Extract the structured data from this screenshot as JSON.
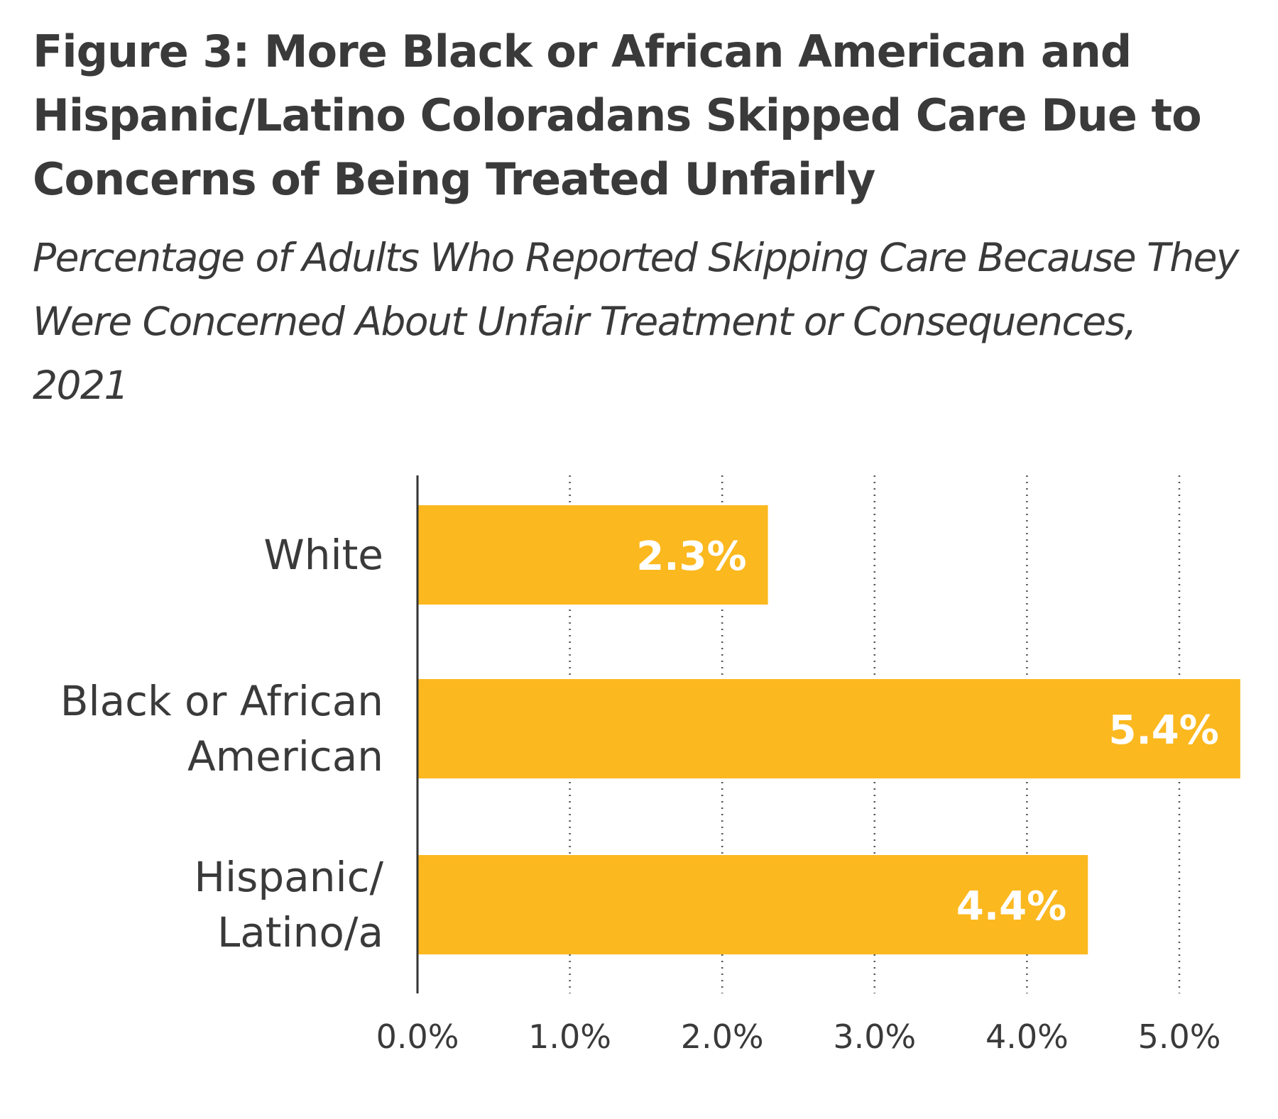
{
  "chart_data": {
    "type": "bar",
    "orientation": "horizontal",
    "title": "Figure 3: More Black or African American and Hispanic/Latino Coloradans Skipped Care Due to Concerns of Being Treated Unfairly",
    "subtitle": "Percentage of Adults Who Reported Skipping Care Because They Were Concerned About Unfair Treatment or Consequences, 2021",
    "categories": [
      [
        "White"
      ],
      [
        "Black or African",
        "American"
      ],
      [
        "Hispanic/",
        "Latino/a"
      ]
    ],
    "values": [
      2.3,
      5.4,
      4.4
    ],
    "value_labels": [
      "2.3%",
      "5.4%",
      "4.4%"
    ],
    "xticks": [
      0,
      1,
      2,
      3,
      4,
      5
    ],
    "xtick_labels": [
      "0.0%",
      "1.0%",
      "2.0%",
      "3.0%",
      "4.0%",
      "5.0%"
    ],
    "xlim": [
      0,
      5.55
    ],
    "grid": "vertical-dotted",
    "bar_color": "#fbb81f"
  }
}
